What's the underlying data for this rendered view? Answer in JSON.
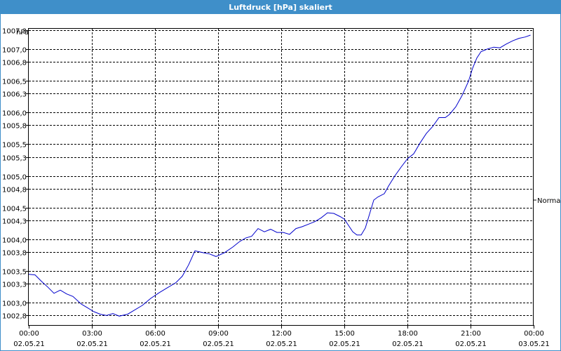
{
  "window": {
    "title": "Luftdruck [hPa] skaliert"
  },
  "chart_data": {
    "type": "line",
    "title": "Luftdruck [hPa] skaliert",
    "ylabel": "hPa",
    "ylim": [
      1002.65,
      1007.32
    ],
    "xlim": [
      0,
      24
    ],
    "y_ticks": [
      "1002,8",
      "1003,0",
      "1003,3",
      "1003,5",
      "1003,8",
      "1004,0",
      "1004,3",
      "1004,5",
      "1004,8",
      "1005,0",
      "1005,3",
      "1005,5",
      "1005,8",
      "1006,0",
      "1006,3",
      "1006,5",
      "1006,8",
      "1007,0",
      "1007,3"
    ],
    "y_tick_values": [
      1002.8,
      1003.0,
      1003.3,
      1003.5,
      1003.8,
      1004.0,
      1004.3,
      1004.5,
      1004.8,
      1005.0,
      1005.3,
      1005.5,
      1005.8,
      1006.0,
      1006.3,
      1006.5,
      1006.8,
      1007.0,
      1007.3
    ],
    "x_ticks": [
      {
        "time": "00:00",
        "date": "02.05.21"
      },
      {
        "time": "03:00",
        "date": "02.05.21"
      },
      {
        "time": "06:00",
        "date": "02.05.21"
      },
      {
        "time": "09:00",
        "date": "02.05.21"
      },
      {
        "time": "12:00",
        "date": "02.05.21"
      },
      {
        "time": "15:00",
        "date": "02.05.21"
      },
      {
        "time": "18:00",
        "date": "02.05.21"
      },
      {
        "time": "21:00",
        "date": "02.05.21"
      },
      {
        "time": "00:00",
        "date": "03.05.21"
      }
    ],
    "x_tick_hours": [
      0,
      3,
      6,
      9,
      12,
      15,
      18,
      21,
      24
    ],
    "grid": true,
    "reference_line": {
      "label": "Normal"
    },
    "series": [
      {
        "color": "#0000cc",
        "points": [
          [
            0.0,
            1003.45
          ],
          [
            0.3,
            1003.44
          ],
          [
            0.6,
            1003.34
          ],
          [
            0.9,
            1003.25
          ],
          [
            1.2,
            1003.15
          ],
          [
            1.5,
            1003.2
          ],
          [
            1.8,
            1003.14
          ],
          [
            2.1,
            1003.1
          ],
          [
            2.5,
            1002.98
          ],
          [
            2.8,
            1002.92
          ],
          [
            3.1,
            1002.86
          ],
          [
            3.4,
            1002.82
          ],
          [
            3.7,
            1002.8
          ],
          [
            4.0,
            1002.83
          ],
          [
            4.3,
            1002.79
          ],
          [
            4.7,
            1002.82
          ],
          [
            5.0,
            1002.88
          ],
          [
            5.4,
            1002.96
          ],
          [
            5.8,
            1003.07
          ],
          [
            6.2,
            1003.16
          ],
          [
            6.6,
            1003.24
          ],
          [
            7.0,
            1003.32
          ],
          [
            7.3,
            1003.42
          ],
          [
            7.6,
            1003.6
          ],
          [
            7.9,
            1003.82
          ],
          [
            8.3,
            1003.79
          ],
          [
            8.6,
            1003.77
          ],
          [
            8.9,
            1003.73
          ],
          [
            9.3,
            1003.79
          ],
          [
            9.7,
            1003.88
          ],
          [
            10.0,
            1003.96
          ],
          [
            10.3,
            1004.02
          ],
          [
            10.6,
            1004.05
          ],
          [
            10.9,
            1004.17
          ],
          [
            11.2,
            1004.12
          ],
          [
            11.5,
            1004.16
          ],
          [
            11.8,
            1004.11
          ],
          [
            12.1,
            1004.11
          ],
          [
            12.4,
            1004.08
          ],
          [
            12.7,
            1004.17
          ],
          [
            13.0,
            1004.2
          ],
          [
            13.3,
            1004.24
          ],
          [
            13.6,
            1004.28
          ],
          [
            13.9,
            1004.34
          ],
          [
            14.2,
            1004.42
          ],
          [
            14.5,
            1004.41
          ],
          [
            14.8,
            1004.36
          ],
          [
            15.0,
            1004.32
          ],
          [
            15.2,
            1004.22
          ],
          [
            15.4,
            1004.12
          ],
          [
            15.6,
            1004.07
          ],
          [
            15.8,
            1004.07
          ],
          [
            16.0,
            1004.18
          ],
          [
            16.2,
            1004.4
          ],
          [
            16.4,
            1004.62
          ],
          [
            16.6,
            1004.67
          ],
          [
            16.9,
            1004.72
          ],
          [
            17.1,
            1004.84
          ],
          [
            17.4,
            1005.0
          ],
          [
            17.7,
            1005.14
          ],
          [
            18.0,
            1005.27
          ],
          [
            18.3,
            1005.35
          ],
          [
            18.6,
            1005.52
          ],
          [
            18.9,
            1005.67
          ],
          [
            19.2,
            1005.78
          ],
          [
            19.5,
            1005.92
          ],
          [
            19.8,
            1005.92
          ],
          [
            20.0,
            1005.97
          ],
          [
            20.3,
            1006.09
          ],
          [
            20.6,
            1006.27
          ],
          [
            20.9,
            1006.49
          ],
          [
            21.1,
            1006.7
          ],
          [
            21.3,
            1006.86
          ],
          [
            21.5,
            1006.96
          ],
          [
            21.8,
            1007.0
          ],
          [
            22.1,
            1007.03
          ],
          [
            22.4,
            1007.02
          ],
          [
            22.7,
            1007.08
          ],
          [
            23.0,
            1007.13
          ],
          [
            23.3,
            1007.17
          ],
          [
            23.6,
            1007.19
          ],
          [
            23.85,
            1007.22
          ]
        ]
      }
    ]
  }
}
